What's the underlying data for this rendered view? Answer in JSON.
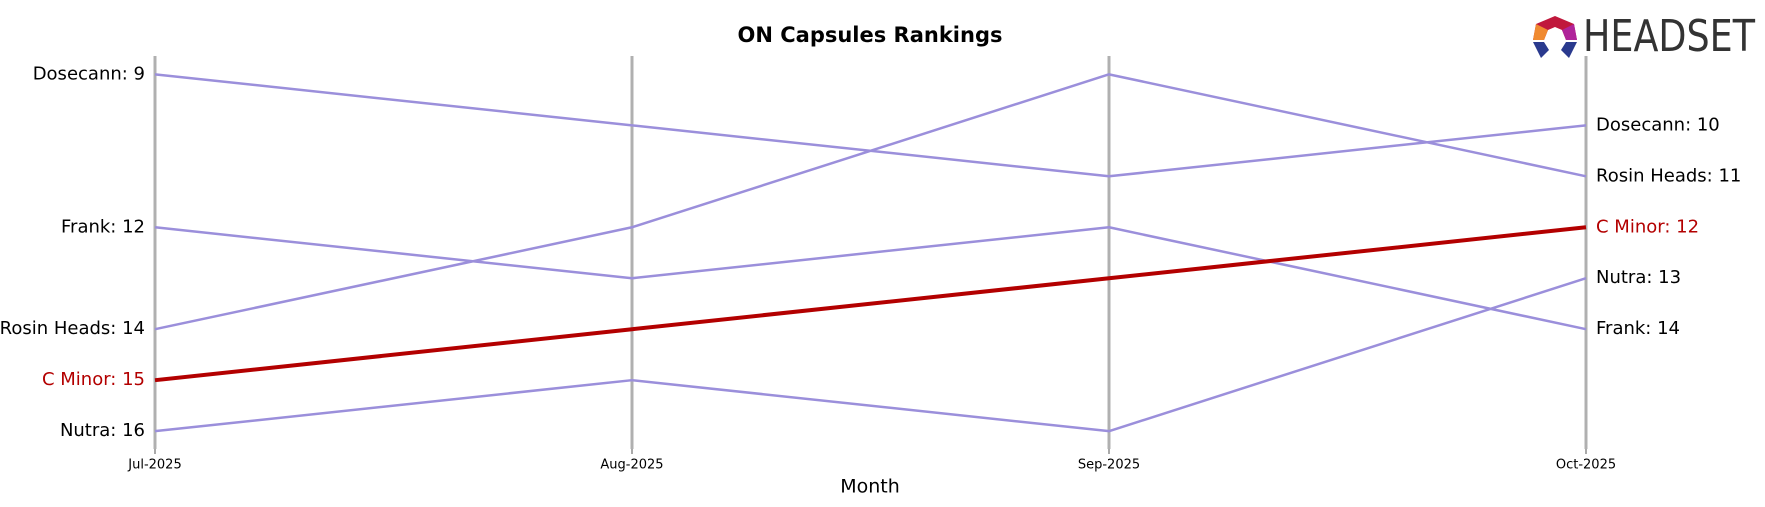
{
  "chart_data": {
    "type": "line",
    "title": "ON Capsules Rankings",
    "x_label": "Month",
    "logo_text": "HEADSET",
    "categories": [
      "Jul-2025",
      "Aug-2025",
      "Sep-2025",
      "Oct-2025"
    ],
    "ylim": [
      16.35,
      8.64
    ],
    "series": [
      {
        "name": "Dosecann",
        "color": "#9b8fdb",
        "label_color": "#000000",
        "values": [
          9,
          10,
          11,
          10
        ],
        "value_labels": [
          "Dosecann: 9",
          null,
          null,
          "Dosecann: 10"
        ]
      },
      {
        "name": "Frank",
        "color": "#9b8fdb",
        "label_color": "#000000",
        "values": [
          12,
          13,
          12,
          14
        ],
        "value_labels": [
          "Frank: 12",
          null,
          null,
          "Frank: 14"
        ]
      },
      {
        "name": "Rosin Heads",
        "color": "#9b8fdb",
        "label_color": "#000000",
        "values": [
          14,
          12,
          9,
          11
        ],
        "value_labels": [
          "Rosin Heads: 14",
          null,
          null,
          "Rosin Heads: 11"
        ]
      },
      {
        "name": "Nutra",
        "color": "#9b8fdb",
        "label_color": "#000000",
        "values": [
          16,
          15,
          16,
          13
        ],
        "value_labels": [
          "Nutra: 16",
          null,
          null,
          "Nutra: 13"
        ]
      },
      {
        "name": "C Minor",
        "color": "#b30000",
        "label_color": "#b30000",
        "width": 4,
        "values": [
          15,
          14,
          13,
          12
        ],
        "value_labels": [
          "C Minor: 15",
          null,
          null,
          "C Minor: 12"
        ]
      }
    ]
  }
}
